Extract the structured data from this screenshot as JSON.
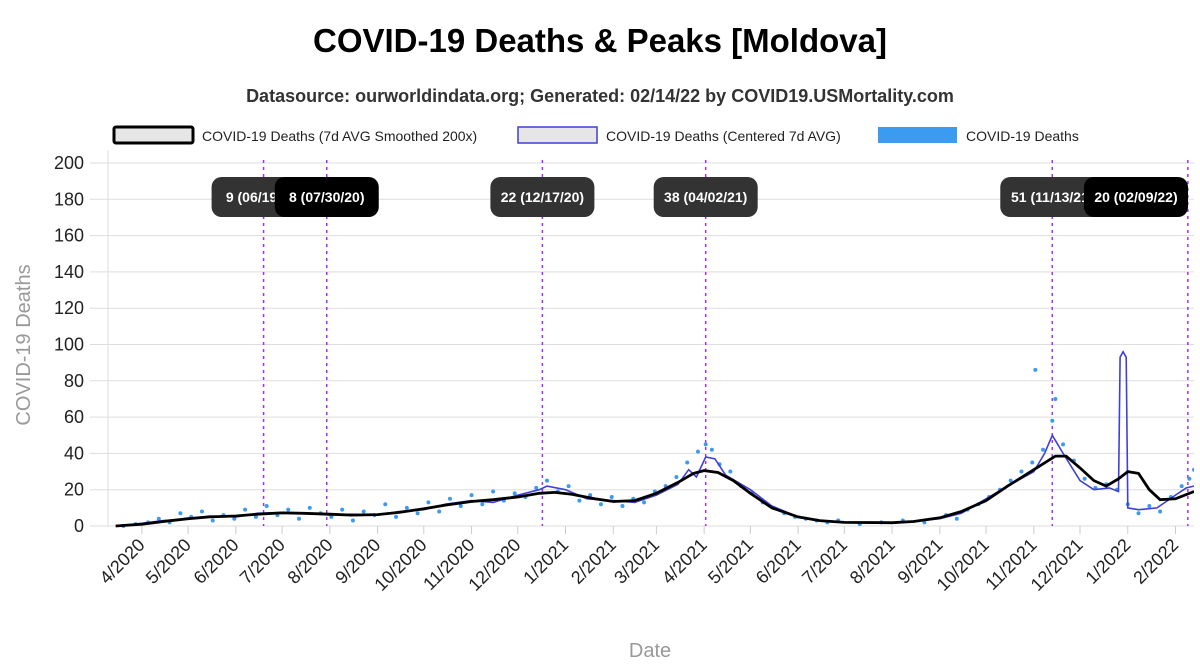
{
  "chart_data": {
    "type": "line",
    "title": "COVID-19 Deaths & Peaks [Moldova]",
    "subtitle": "Datasource: ourworldindata.org; Generated: 02/14/22 by COVID19.USMortality.com",
    "xlabel": "Date",
    "ylabel": "COVID-19 Deaths",
    "ylim": [
      0,
      200
    ],
    "yticks": [
      0,
      20,
      40,
      60,
      80,
      100,
      120,
      140,
      160,
      180,
      200
    ],
    "xlim": [
      "2020-03-10",
      "2022-02-13"
    ],
    "xticks": [
      {
        "date": "2020-04-01",
        "label": "4/2020"
      },
      {
        "date": "2020-05-01",
        "label": "5/2020"
      },
      {
        "date": "2020-06-01",
        "label": "6/2020"
      },
      {
        "date": "2020-07-01",
        "label": "7/2020"
      },
      {
        "date": "2020-08-01",
        "label": "8/2020"
      },
      {
        "date": "2020-09-01",
        "label": "9/2020"
      },
      {
        "date": "2020-10-01",
        "label": "10/2020"
      },
      {
        "date": "2020-11-01",
        "label": "11/2020"
      },
      {
        "date": "2020-12-01",
        "label": "12/2020"
      },
      {
        "date": "2021-01-01",
        "label": "1/2021"
      },
      {
        "date": "2021-02-01",
        "label": "2/2021"
      },
      {
        "date": "2021-03-01",
        "label": "3/2021"
      },
      {
        "date": "2021-04-01",
        "label": "4/2021"
      },
      {
        "date": "2021-05-01",
        "label": "5/2021"
      },
      {
        "date": "2021-06-01",
        "label": "6/2021"
      },
      {
        "date": "2021-07-01",
        "label": "7/2021"
      },
      {
        "date": "2021-08-01",
        "label": "8/2021"
      },
      {
        "date": "2021-09-01",
        "label": "9/2021"
      },
      {
        "date": "2021-10-01",
        "label": "10/2021"
      },
      {
        "date": "2021-11-01",
        "label": "11/2021"
      },
      {
        "date": "2021-12-01",
        "label": "12/2021"
      },
      {
        "date": "2022-01-01",
        "label": "1/2022"
      },
      {
        "date": "2022-02-01",
        "label": "2/2022"
      }
    ],
    "grid": true,
    "legend_position": "top",
    "series": [
      {
        "name": "COVID-19 Deaths (7d AVG Smoothed 200x)",
        "color": "#000000",
        "style": "line",
        "points": [
          [
            "2020-03-15",
            0
          ],
          [
            "2020-04-01",
            1
          ],
          [
            "2020-04-15",
            2.5
          ],
          [
            "2020-05-01",
            4
          ],
          [
            "2020-05-15",
            5
          ],
          [
            "2020-06-01",
            5.5
          ],
          [
            "2020-06-15",
            6.5
          ],
          [
            "2020-07-01",
            7.2
          ],
          [
            "2020-07-15",
            7
          ],
          [
            "2020-08-01",
            6.5
          ],
          [
            "2020-08-15",
            6
          ],
          [
            "2020-09-01",
            6.3
          ],
          [
            "2020-09-15",
            7.5
          ],
          [
            "2020-10-01",
            9.5
          ],
          [
            "2020-10-15",
            11.5
          ],
          [
            "2020-11-01",
            13.5
          ],
          [
            "2020-11-15",
            14.5
          ],
          [
            "2020-12-01",
            16
          ],
          [
            "2020-12-15",
            18
          ],
          [
            "2020-12-25",
            18.5
          ],
          [
            "2021-01-05",
            17.5
          ],
          [
            "2021-01-20",
            15
          ],
          [
            "2021-02-01",
            13.5
          ],
          [
            "2021-02-15",
            14
          ],
          [
            "2021-03-01",
            18
          ],
          [
            "2021-03-15",
            24
          ],
          [
            "2021-03-25",
            29
          ],
          [
            "2021-04-01",
            30.5
          ],
          [
            "2021-04-10",
            29.5
          ],
          [
            "2021-04-20",
            25
          ],
          [
            "2021-05-01",
            18
          ],
          [
            "2021-05-15",
            10
          ],
          [
            "2021-06-01",
            5
          ],
          [
            "2021-06-15",
            3
          ],
          [
            "2021-07-01",
            2
          ],
          [
            "2021-08-01",
            1.8
          ],
          [
            "2021-08-15",
            2.5
          ],
          [
            "2021-09-01",
            4.5
          ],
          [
            "2021-09-15",
            8
          ],
          [
            "2021-10-01",
            14
          ],
          [
            "2021-10-15",
            22
          ],
          [
            "2021-11-01",
            31
          ],
          [
            "2021-11-15",
            38.5
          ],
          [
            "2021-11-22",
            38.5
          ],
          [
            "2021-12-01",
            32
          ],
          [
            "2021-12-10",
            25
          ],
          [
            "2021-12-18",
            22
          ],
          [
            "2021-12-26",
            26
          ],
          [
            "2022-01-01",
            30
          ],
          [
            "2022-01-08",
            29
          ],
          [
            "2022-01-15",
            20
          ],
          [
            "2022-01-22",
            14.5
          ],
          [
            "2022-02-01",
            15
          ],
          [
            "2022-02-13",
            19
          ]
        ]
      },
      {
        "name": "COVID-19 Deaths (Centered 7d AVG)",
        "color": "#3f3fdb",
        "style": "line",
        "points": [
          [
            "2020-03-15",
            0
          ],
          [
            "2020-04-01",
            1.5
          ],
          [
            "2020-04-15",
            3
          ],
          [
            "2020-05-01",
            4
          ],
          [
            "2020-05-15",
            5.5
          ],
          [
            "2020-06-01",
            5
          ],
          [
            "2020-06-15",
            7
          ],
          [
            "2020-07-01",
            7.5
          ],
          [
            "2020-07-15",
            7.2
          ],
          [
            "2020-08-01",
            6
          ],
          [
            "2020-08-15",
            6.5
          ],
          [
            "2020-09-01",
            6
          ],
          [
            "2020-09-15",
            8
          ],
          [
            "2020-10-01",
            9
          ],
          [
            "2020-10-15",
            12
          ],
          [
            "2020-11-01",
            14
          ],
          [
            "2020-11-15",
            13
          ],
          [
            "2020-12-01",
            17
          ],
          [
            "2020-12-15",
            20
          ],
          [
            "2020-12-20",
            22
          ],
          [
            "2021-01-01",
            20
          ],
          [
            "2021-01-15",
            15
          ],
          [
            "2021-02-01",
            14
          ],
          [
            "2021-02-15",
            13
          ],
          [
            "2021-03-01",
            17
          ],
          [
            "2021-03-15",
            23
          ],
          [
            "2021-03-22",
            31
          ],
          [
            "2021-03-27",
            27
          ],
          [
            "2021-04-02",
            38
          ],
          [
            "2021-04-08",
            37
          ],
          [
            "2021-04-15",
            28
          ],
          [
            "2021-05-01",
            20
          ],
          [
            "2021-05-15",
            11
          ],
          [
            "2021-06-01",
            5
          ],
          [
            "2021-06-15",
            3
          ],
          [
            "2021-07-01",
            2
          ],
          [
            "2021-08-01",
            1.5
          ],
          [
            "2021-08-15",
            2.5
          ],
          [
            "2021-09-01",
            4
          ],
          [
            "2021-09-15",
            7
          ],
          [
            "2021-10-01",
            15
          ],
          [
            "2021-10-15",
            22
          ],
          [
            "2021-11-01",
            30
          ],
          [
            "2021-11-08",
            40
          ],
          [
            "2021-11-13",
            50
          ],
          [
            "2021-11-20",
            40
          ],
          [
            "2021-12-01",
            25
          ],
          [
            "2021-12-10",
            20
          ],
          [
            "2021-12-20",
            21
          ],
          [
            "2021-12-26",
            19
          ],
          [
            "2021-12-27",
            93
          ],
          [
            "2021-12-29",
            96
          ],
          [
            "2021-12-31",
            93
          ],
          [
            "2022-01-01",
            10
          ],
          [
            "2022-01-08",
            9
          ],
          [
            "2022-01-20",
            10
          ],
          [
            "2022-02-01",
            17
          ],
          [
            "2022-02-08",
            21
          ],
          [
            "2022-02-13",
            22
          ]
        ]
      },
      {
        "name": "COVID-19 Deaths",
        "color": "#3a9bf0",
        "style": "scatter",
        "points": [
          [
            "2020-03-20",
            0
          ],
          [
            "2020-03-28",
            1
          ],
          [
            "2020-04-05",
            2
          ],
          [
            "2020-04-12",
            4
          ],
          [
            "2020-04-19",
            2
          ],
          [
            "2020-04-26",
            7
          ],
          [
            "2020-05-03",
            5
          ],
          [
            "2020-05-10",
            8
          ],
          [
            "2020-05-17",
            3
          ],
          [
            "2020-05-24",
            6
          ],
          [
            "2020-05-31",
            4
          ],
          [
            "2020-06-07",
            9
          ],
          [
            "2020-06-14",
            5
          ],
          [
            "2020-06-21",
            11
          ],
          [
            "2020-06-28",
            6
          ],
          [
            "2020-07-05",
            9
          ],
          [
            "2020-07-12",
            4
          ],
          [
            "2020-07-19",
            10
          ],
          [
            "2020-07-26",
            7
          ],
          [
            "2020-08-02",
            5
          ],
          [
            "2020-08-09",
            9
          ],
          [
            "2020-08-16",
            3
          ],
          [
            "2020-08-23",
            8
          ],
          [
            "2020-08-30",
            6
          ],
          [
            "2020-09-06",
            12
          ],
          [
            "2020-09-13",
            5
          ],
          [
            "2020-09-20",
            10
          ],
          [
            "2020-09-27",
            7
          ],
          [
            "2020-10-04",
            13
          ],
          [
            "2020-10-11",
            8
          ],
          [
            "2020-10-18",
            15
          ],
          [
            "2020-10-25",
            11
          ],
          [
            "2020-11-01",
            17
          ],
          [
            "2020-11-08",
            12
          ],
          [
            "2020-11-15",
            19
          ],
          [
            "2020-11-22",
            14
          ],
          [
            "2020-11-29",
            18
          ],
          [
            "2020-12-06",
            16
          ],
          [
            "2020-12-13",
            21
          ],
          [
            "2020-12-20",
            25
          ],
          [
            "2020-12-27",
            19
          ],
          [
            "2021-01-03",
            22
          ],
          [
            "2021-01-10",
            14
          ],
          [
            "2021-01-17",
            17
          ],
          [
            "2021-01-24",
            12
          ],
          [
            "2021-01-31",
            16
          ],
          [
            "2021-02-07",
            11
          ],
          [
            "2021-02-14",
            15
          ],
          [
            "2021-02-21",
            13
          ],
          [
            "2021-02-28",
            19
          ],
          [
            "2021-03-07",
            22
          ],
          [
            "2021-03-14",
            27
          ],
          [
            "2021-03-21",
            35
          ],
          [
            "2021-03-28",
            41
          ],
          [
            "2021-04-02",
            45
          ],
          [
            "2021-04-06",
            42
          ],
          [
            "2021-04-11",
            34
          ],
          [
            "2021-04-18",
            30
          ],
          [
            "2021-04-25",
            22
          ],
          [
            "2021-05-02",
            18
          ],
          [
            "2021-05-09",
            13
          ],
          [
            "2021-05-16",
            10
          ],
          [
            "2021-05-23",
            7
          ],
          [
            "2021-05-30",
            5
          ],
          [
            "2021-06-06",
            4
          ],
          [
            "2021-06-13",
            3
          ],
          [
            "2021-06-20",
            2
          ],
          [
            "2021-06-27",
            3
          ],
          [
            "2021-07-11",
            1
          ],
          [
            "2021-07-25",
            2
          ],
          [
            "2021-08-08",
            3
          ],
          [
            "2021-08-22",
            2
          ],
          [
            "2021-09-05",
            6
          ],
          [
            "2021-09-12",
            4
          ],
          [
            "2021-09-19",
            9
          ],
          [
            "2021-09-26",
            12
          ],
          [
            "2021-10-03",
            16
          ],
          [
            "2021-10-10",
            20
          ],
          [
            "2021-10-17",
            25
          ],
          [
            "2021-10-24",
            30
          ],
          [
            "2021-10-31",
            35
          ],
          [
            "2021-11-02",
            86
          ],
          [
            "2021-11-07",
            42
          ],
          [
            "2021-11-13",
            58
          ],
          [
            "2021-11-15",
            70
          ],
          [
            "2021-11-20",
            45
          ],
          [
            "2021-11-27",
            36
          ],
          [
            "2021-12-04",
            26
          ],
          [
            "2021-12-11",
            21
          ],
          [
            "2021-12-18",
            23
          ],
          [
            "2021-12-25",
            20
          ],
          [
            "2022-01-01",
            12
          ],
          [
            "2022-01-08",
            7
          ],
          [
            "2022-01-15",
            11
          ],
          [
            "2022-01-22",
            8
          ],
          [
            "2022-01-29",
            16
          ],
          [
            "2022-02-05",
            22
          ],
          [
            "2022-02-10",
            26
          ],
          [
            "2022-02-13",
            31
          ]
        ]
      }
    ],
    "peaks": [
      {
        "date": "2020-06-19",
        "label": "9 (06/19/20)"
      },
      {
        "date": "2020-07-30",
        "label": "8 (07/30/20)"
      },
      {
        "date": "2020-12-17",
        "label": "22 (12/17/20)"
      },
      {
        "date": "2021-04-02",
        "label": "38 (04/02/21)"
      },
      {
        "date": "2021-11-13",
        "label": "51 (11/13/21)"
      },
      {
        "date": "2022-02-09",
        "label": "20 (02/09/22)"
      }
    ]
  },
  "colors": {
    "grid": "#dddddd",
    "peak_line": "#9b30ff",
    "peak_box": "#333333",
    "peak_box_last": "#000000"
  }
}
